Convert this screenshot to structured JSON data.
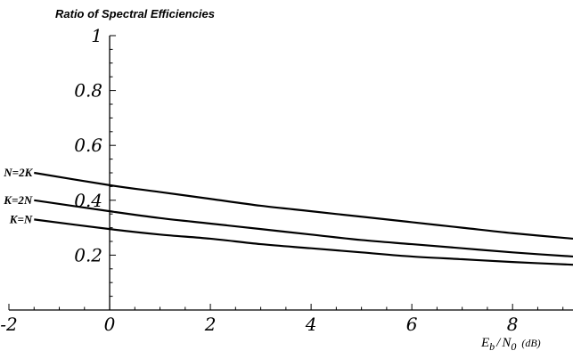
{
  "chart_data": {
    "type": "line",
    "title": "Ratio of Spectral Efficiencies",
    "xlabel": "",
    "xlabel_parts": {
      "e": "E",
      "b": "b",
      "slash": "/",
      "n": "N",
      "zero": "0",
      "unit": "(dB)"
    },
    "ylabel": "",
    "xlim": [
      -2,
      9.2
    ],
    "ylim": [
      0,
      1.0
    ],
    "x_ticks": [
      -2,
      0,
      2,
      4,
      6,
      8
    ],
    "x_tick_labels": [
      "-2",
      "0",
      "2",
      "4",
      "6",
      "8"
    ],
    "y_ticks": [
      0.2,
      0.4,
      0.6,
      0.8,
      1.0
    ],
    "y_tick_labels": [
      "0.2",
      "0.4",
      "0.6",
      "0.8",
      "1"
    ],
    "grid": false,
    "legend": "inline-left",
    "x": [
      -1.5,
      0,
      1,
      2,
      3,
      4,
      5,
      6,
      7,
      8,
      9.2
    ],
    "series": [
      {
        "name": "N=2K",
        "values": [
          0.5,
          0.455,
          0.43,
          0.405,
          0.38,
          0.36,
          0.34,
          0.32,
          0.3,
          0.28,
          0.26
        ]
      },
      {
        "name": "K=2N",
        "values": [
          0.4,
          0.36,
          0.335,
          0.315,
          0.295,
          0.275,
          0.255,
          0.24,
          0.225,
          0.21,
          0.195
        ]
      },
      {
        "name": "K=N",
        "values": [
          0.33,
          0.295,
          0.275,
          0.26,
          0.24,
          0.225,
          0.21,
          0.195,
          0.185,
          0.175,
          0.165
        ]
      }
    ]
  }
}
